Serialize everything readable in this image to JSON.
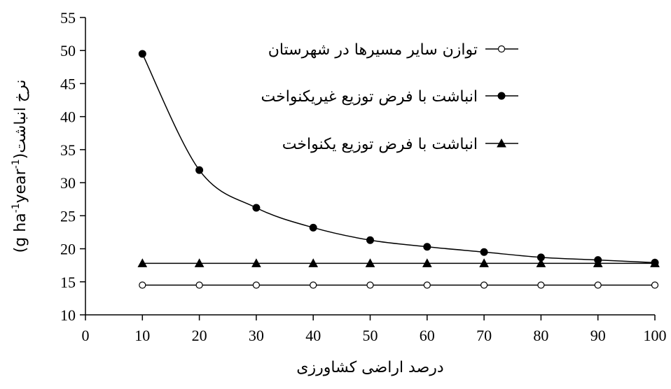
{
  "chart_data": {
    "type": "line",
    "x": [
      10,
      20,
      30,
      40,
      50,
      60,
      70,
      80,
      90,
      100
    ],
    "xlabel": "درصد اراضی کشاورزی",
    "ylabel_main": "نرخ انباشت",
    "ylabel_unit_open": "(g ha",
    "ylabel_sup1": "-1",
    "ylabel_unit_mid": "year",
    "ylabel_sup2": "-1",
    "ylabel_unit_close": ")",
    "xlim": [
      0,
      100
    ],
    "ylim": [
      10,
      55
    ],
    "xticks": [
      "0",
      "10",
      "20",
      "30",
      "40",
      "50",
      "60",
      "70",
      "80",
      "90",
      "100"
    ],
    "yticks": [
      "10",
      "15",
      "20",
      "25",
      "30",
      "35",
      "40",
      "45",
      "50",
      "55"
    ],
    "grid": false,
    "legend_position": "top-right",
    "series": [
      {
        "name": "توازن سایر مسیرها در شهرستان",
        "marker": "open-circle",
        "smooth": false,
        "values": [
          14.5,
          14.5,
          14.5,
          14.5,
          14.5,
          14.5,
          14.5,
          14.5,
          14.5,
          14.5
        ]
      },
      {
        "name": "انباشت با فرض توزیع غیریکنواخت",
        "marker": "filled-circle",
        "smooth": true,
        "values": [
          49.5,
          31.9,
          26.2,
          23.2,
          21.3,
          20.3,
          19.5,
          18.7,
          18.3,
          17.9
        ]
      },
      {
        "name": "انباشت با فرض توزیع یکنواخت",
        "marker": "filled-triangle",
        "smooth": false,
        "values": [
          17.8,
          17.8,
          17.8,
          17.8,
          17.8,
          17.8,
          17.8,
          17.8,
          17.8,
          17.8
        ]
      }
    ]
  }
}
